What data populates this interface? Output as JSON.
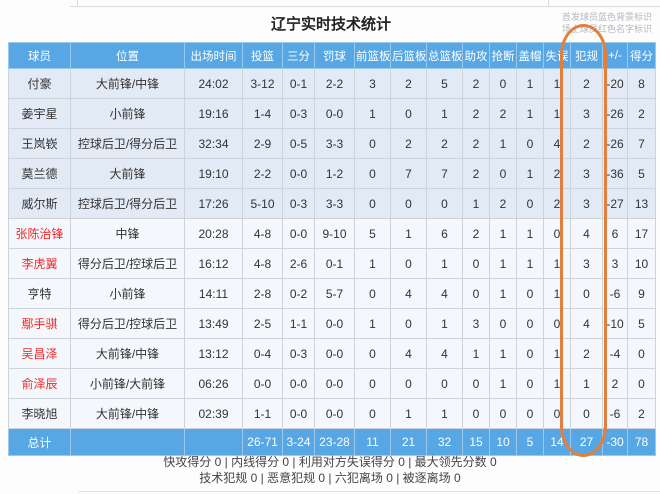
{
  "title": "辽宁实时技术统计",
  "legend": {
    "starters_note": "首发球员蓝色背景标识",
    "oncourt_note": "场上球员红色名字标识"
  },
  "table": {
    "columns": [
      {
        "key": "name",
        "label": "球员"
      },
      {
        "key": "position",
        "label": "位置"
      },
      {
        "key": "time",
        "label": "出场时间"
      },
      {
        "key": "fg",
        "label": "投篮"
      },
      {
        "key": "three",
        "label": "三分"
      },
      {
        "key": "ft",
        "label": "罚球"
      },
      {
        "key": "oreb",
        "label": "前篮板"
      },
      {
        "key": "dreb",
        "label": "后篮板"
      },
      {
        "key": "treb",
        "label": "总篮板"
      },
      {
        "key": "ast",
        "label": "助攻"
      },
      {
        "key": "stl",
        "label": "抢断"
      },
      {
        "key": "blk",
        "label": "盖帽"
      },
      {
        "key": "tov",
        "label": "失误"
      },
      {
        "key": "pf",
        "label": "犯规"
      },
      {
        "key": "plusminus",
        "label": "+/-"
      },
      {
        "key": "pts",
        "label": "得分"
      }
    ],
    "players": [
      {
        "name": "付豪",
        "starter": true,
        "oncourt": false,
        "position": "大前锋/中锋",
        "time": "24:02",
        "fg": "3-12",
        "three": "0-1",
        "ft": "2-2",
        "oreb": "3",
        "dreb": "2",
        "treb": "5",
        "ast": "2",
        "stl": "0",
        "blk": "1",
        "tov": "1",
        "pf": "2",
        "plusminus": "-20",
        "pts": "8"
      },
      {
        "name": "姜宇星",
        "starter": true,
        "oncourt": false,
        "position": "小前锋",
        "time": "19:16",
        "fg": "1-4",
        "three": "0-3",
        "ft": "0-0",
        "oreb": "1",
        "dreb": "0",
        "treb": "1",
        "ast": "2",
        "stl": "2",
        "blk": "1",
        "tov": "1",
        "pf": "3",
        "plusminus": "-26",
        "pts": "2"
      },
      {
        "name": "王岚嵚",
        "starter": true,
        "oncourt": false,
        "position": "控球后卫/得分后卫",
        "time": "32:34",
        "fg": "2-9",
        "three": "0-5",
        "ft": "3-3",
        "oreb": "0",
        "dreb": "2",
        "treb": "2",
        "ast": "2",
        "stl": "1",
        "blk": "0",
        "tov": "4",
        "pf": "2",
        "plusminus": "-26",
        "pts": "7"
      },
      {
        "name": "莫兰德",
        "starter": true,
        "oncourt": false,
        "position": "大前锋",
        "time": "19:10",
        "fg": "2-2",
        "three": "0-0",
        "ft": "1-2",
        "oreb": "0",
        "dreb": "7",
        "treb": "7",
        "ast": "2",
        "stl": "0",
        "blk": "1",
        "tov": "2",
        "pf": "3",
        "plusminus": "-36",
        "pts": "5"
      },
      {
        "name": "威尔斯",
        "starter": true,
        "oncourt": false,
        "position": "控球后卫/得分后卫",
        "time": "17:26",
        "fg": "5-10",
        "three": "0-3",
        "ft": "3-3",
        "oreb": "0",
        "dreb": "0",
        "treb": "0",
        "ast": "1",
        "stl": "2",
        "blk": "0",
        "tov": "2",
        "pf": "3",
        "plusminus": "-27",
        "pts": "13"
      },
      {
        "name": "张陈治锋",
        "starter": false,
        "oncourt": true,
        "position": "中锋",
        "time": "20:28",
        "fg": "4-8",
        "three": "0-0",
        "ft": "9-10",
        "oreb": "5",
        "dreb": "1",
        "treb": "6",
        "ast": "2",
        "stl": "1",
        "blk": "1",
        "tov": "0",
        "pf": "4",
        "plusminus": "6",
        "pts": "17"
      },
      {
        "name": "李虎翼",
        "starter": false,
        "oncourt": true,
        "position": "得分后卫/控球后卫",
        "time": "16:12",
        "fg": "4-8",
        "three": "2-6",
        "ft": "0-1",
        "oreb": "1",
        "dreb": "0",
        "treb": "1",
        "ast": "0",
        "stl": "1",
        "blk": "1",
        "tov": "1",
        "pf": "3",
        "plusminus": "3",
        "pts": "10"
      },
      {
        "name": "亨特",
        "starter": false,
        "oncourt": false,
        "position": "小前锋",
        "time": "14:11",
        "fg": "2-8",
        "three": "0-2",
        "ft": "5-7",
        "oreb": "0",
        "dreb": "4",
        "treb": "4",
        "ast": "0",
        "stl": "1",
        "blk": "0",
        "tov": "1",
        "pf": "0",
        "plusminus": "-6",
        "pts": "9"
      },
      {
        "name": "鄢手骐",
        "starter": false,
        "oncourt": true,
        "position": "得分后卫/控球后卫",
        "time": "13:49",
        "fg": "2-5",
        "three": "1-1",
        "ft": "0-0",
        "oreb": "1",
        "dreb": "0",
        "treb": "1",
        "ast": "3",
        "stl": "0",
        "blk": "0",
        "tov": "0",
        "pf": "4",
        "plusminus": "-10",
        "pts": "5"
      },
      {
        "name": "吴昌泽",
        "starter": false,
        "oncourt": true,
        "position": "大前锋/中锋",
        "time": "13:12",
        "fg": "0-4",
        "three": "0-3",
        "ft": "0-0",
        "oreb": "0",
        "dreb": "4",
        "treb": "4",
        "ast": "1",
        "stl": "1",
        "blk": "0",
        "tov": "1",
        "pf": "2",
        "plusminus": "-4",
        "pts": "0"
      },
      {
        "name": "俞泽辰",
        "starter": false,
        "oncourt": true,
        "position": "小前锋/大前锋",
        "time": "06:26",
        "fg": "0-0",
        "three": "0-0",
        "ft": "0-0",
        "oreb": "0",
        "dreb": "0",
        "treb": "0",
        "ast": "0",
        "stl": "1",
        "blk": "0",
        "tov": "1",
        "pf": "1",
        "plusminus": "2",
        "pts": "0"
      },
      {
        "name": "李晓旭",
        "starter": false,
        "oncourt": false,
        "position": "大前锋/中锋",
        "time": "02:39",
        "fg": "1-1",
        "three": "0-0",
        "ft": "0-0",
        "oreb": "0",
        "dreb": "1",
        "treb": "1",
        "ast": "0",
        "stl": "0",
        "blk": "0",
        "tov": "0",
        "pf": "0",
        "plusminus": "-6",
        "pts": "2"
      }
    ],
    "totals": {
      "name": "总计",
      "position": "",
      "time": "",
      "fg": "26-71",
      "three": "3-24",
      "ft": "23-28",
      "oreb": "11",
      "dreb": "21",
      "treb": "32",
      "ast": "15",
      "stl": "10",
      "blk": "5",
      "tov": "14",
      "pf": "27",
      "plusminus": "-30",
      "pts": "78"
    }
  },
  "footer": {
    "line1": "快攻得分 0 | 内线得分 0 | 利用对方失误得分 0 | 最大领先分数 0",
    "line2": "技术犯规 0 | 恶意犯规 0 | 六犯离场 0 | 被逐离场 0"
  },
  "highlight": {
    "target_column": "犯规"
  },
  "colors": {
    "header_bg": "#57a7e4",
    "totals_bg": "#57a7e4",
    "starter_row_bg": "#e2eaf6",
    "bench_row_bg": "#f4f7fb",
    "oncourt_name_color": "#f02b2b",
    "highlight_color": "#e0803c",
    "border_color": "#ccd3db"
  }
}
